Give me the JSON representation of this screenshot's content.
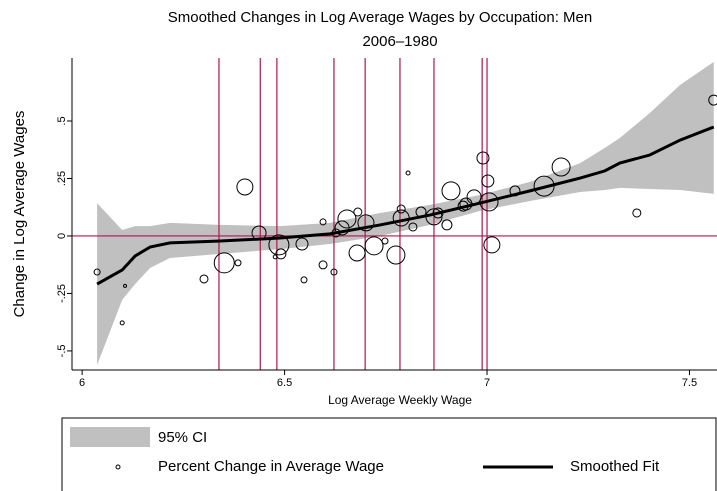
{
  "chart_data": {
    "type": "scatter",
    "title": "Smoothed Changes in Log Average Wages by Occupation: Men",
    "subtitle": "2006–1980",
    "x_label": "Log Average Weekly Wage",
    "y_label": "Change in Log Average Wages",
    "xlim": [
      5.975,
      7.568
    ],
    "ylim": [
      -0.583,
      0.774
    ],
    "xticks": [
      6,
      6.5,
      7,
      7.5
    ],
    "yticks": [
      {
        "value": -0.5,
        "label": "-.5"
      },
      {
        "value": -0.25,
        "label": "-.25"
      },
      0,
      {
        "value": 0.25,
        "label": ".25"
      },
      {
        "value": 0.5,
        "label": ".5"
      }
    ],
    "ref_lines_x": [
      6.338,
      6.44,
      6.481,
      6.622,
      6.699,
      6.785,
      6.869,
      6.988,
      7.0
    ],
    "ref_lines_y": [
      0
    ],
    "ref_color": "#b0144f",
    "series": [
      {
        "name": "95% CI",
        "color": "#c0c0c0",
        "x": [
          6.037,
          6.099,
          6.131,
          6.168,
          6.217,
          6.341,
          6.489,
          6.612,
          6.736,
          6.859,
          6.983,
          7.106,
          7.23,
          7.291,
          7.328,
          7.402,
          7.477,
          7.56
        ],
        "upper": [
          0.143,
          0.026,
          0.043,
          0.043,
          0.057,
          0.048,
          0.043,
          0.057,
          0.1,
          0.135,
          0.178,
          0.235,
          0.317,
          0.383,
          0.426,
          0.535,
          0.657,
          0.757
        ],
        "lower": [
          -0.561,
          -0.278,
          -0.209,
          -0.139,
          -0.096,
          -0.078,
          -0.057,
          -0.035,
          0,
          0.048,
          0.109,
          0.152,
          0.191,
          0.2,
          0.209,
          0.204,
          0.2,
          0.183
        ]
      },
      {
        "name": "Percent Change in Average Wage",
        "color": "#000000",
        "x": [
          6.037,
          6.099,
          6.106,
          6.301,
          6.351,
          6.385,
          6.402,
          6.437,
          6.477,
          6.486,
          6.491,
          6.543,
          6.548,
          6.595,
          6.595,
          6.622,
          6.627,
          6.642,
          6.654,
          6.681,
          6.679,
          6.701,
          6.721,
          6.748,
          6.775,
          6.788,
          6.788,
          6.805,
          6.817,
          6.837,
          6.869,
          6.879,
          6.901,
          6.911,
          6.941,
          6.948,
          6.968,
          6.99,
          7.002,
          7.005,
          7.012,
          7.069,
          7.141,
          7.183,
          7.37,
          7.56
        ],
        "values": [
          -0.157,
          -0.378,
          -0.217,
          -0.187,
          -0.117,
          -0.117,
          0.213,
          0.013,
          -0.091,
          -0.039,
          -0.078,
          -0.035,
          -0.191,
          0.061,
          -0.126,
          -0.157,
          0.013,
          0.035,
          0.074,
          0.104,
          -0.074,
          0.057,
          -0.043,
          -0.022,
          -0.083,
          0.117,
          0.078,
          0.274,
          0.039,
          0.104,
          0.083,
          0.1,
          0.048,
          0.196,
          0.13,
          0.139,
          0.17,
          0.339,
          0.239,
          0.148,
          -0.039,
          0.196,
          0.217,
          0.3,
          0.1,
          0.591
        ],
        "sizes": [
          3,
          2,
          1.5,
          4,
          10,
          3,
          8,
          7,
          2,
          10,
          5,
          6,
          3,
          3,
          4,
          3,
          4,
          7,
          9,
          4,
          8,
          8,
          9,
          3,
          9,
          4,
          8,
          2,
          4,
          5,
          8,
          5,
          5,
          9,
          5,
          6,
          7,
          6,
          6,
          9,
          8,
          5,
          10,
          9,
          4,
          5
        ]
      },
      {
        "name": "Smoothed Fit",
        "color": "#000000",
        "x": [
          6.037,
          6.099,
          6.131,
          6.168,
          6.217,
          6.341,
          6.489,
          6.612,
          6.736,
          6.859,
          6.983,
          7.106,
          7.23,
          7.291,
          7.328,
          7.402,
          7.477,
          7.56
        ],
        "values": [
          -0.209,
          -0.148,
          -0.087,
          -0.048,
          -0.03,
          -0.022,
          -0.009,
          0.009,
          0.048,
          0.091,
          0.143,
          0.196,
          0.252,
          0.283,
          0.317,
          0.352,
          0.417,
          0.474
        ]
      }
    ]
  }
}
